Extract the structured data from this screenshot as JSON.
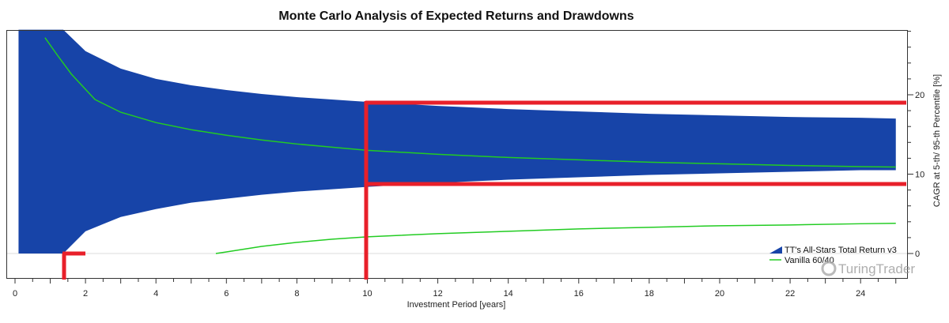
{
  "chart_data": {
    "type": "area",
    "title": "Monte Carlo Analysis of Expected Returns and Drawdowns",
    "xlabel": "Investment Period [years]",
    "ylabel": "CAGR at 5-th/ 95-th Percentile [%]",
    "xlim": [
      0,
      25.3
    ],
    "ylim": [
      -3.2,
      28.2
    ],
    "x_ticks": [
      "0",
      "2",
      "4",
      "6",
      "8",
      "10",
      "12",
      "14",
      "16",
      "18",
      "20",
      "22",
      "24"
    ],
    "y_ticks": [
      "0",
      "10",
      "20"
    ],
    "y_axis_position": "right",
    "grid": false,
    "legend_position": "bottom-right",
    "series": [
      {
        "name": "TT's All-Stars Total Return v3",
        "kind": "band",
        "color": "#1744a8",
        "x": [
          0.1,
          1.37,
          2,
          3,
          4,
          5,
          6,
          7,
          8,
          9,
          10,
          12,
          14,
          16,
          18,
          20,
          22,
          24,
          25
        ],
        "upper": [
          28.2,
          28.2,
          25.5,
          23.3,
          22.0,
          21.2,
          20.6,
          20.1,
          19.7,
          19.4,
          19.1,
          18.6,
          18.2,
          17.9,
          17.6,
          17.4,
          17.2,
          17.1,
          17.0
        ],
        "lower": [
          0,
          0,
          2.8,
          4.6,
          5.6,
          6.4,
          6.9,
          7.4,
          7.8,
          8.1,
          8.4,
          8.9,
          9.3,
          9.6,
          9.9,
          10.1,
          10.3,
          10.5,
          10.5
        ]
      },
      {
        "name": "Vanilla 60/40",
        "kind": "line",
        "color": "#22cc22",
        "x": [
          0.85,
          1.2,
          1.6,
          2.27,
          3,
          4,
          5,
          6,
          7,
          8,
          9,
          10,
          12,
          14,
          16,
          18,
          20,
          22,
          24,
          25
        ],
        "y95": [
          27.2,
          25.0,
          22.6,
          19.4,
          17.8,
          16.5,
          15.6,
          14.9,
          14.3,
          13.8,
          13.4,
          13.0,
          12.5,
          12.1,
          11.8,
          11.5,
          11.3,
          11.1,
          10.95,
          10.9
        ],
        "x5": [
          5.7,
          6,
          7,
          8,
          9,
          10,
          12,
          14,
          16,
          18,
          20,
          22,
          24,
          25
        ],
        "y5": [
          0,
          0.2,
          0.9,
          1.4,
          1.8,
          2.1,
          2.5,
          2.8,
          3.1,
          3.3,
          3.5,
          3.6,
          3.75,
          3.8
        ]
      }
    ]
  },
  "watermark": "TuringTrader",
  "annotation_color": "#e8202a"
}
